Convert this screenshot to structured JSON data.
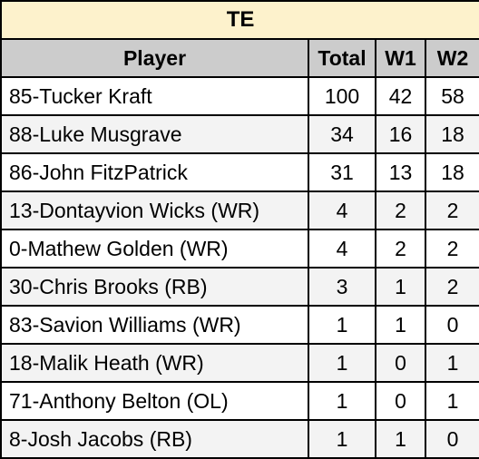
{
  "title": "TE",
  "headers": {
    "player": "Player",
    "total": "Total",
    "w1": "W1",
    "w2": "W2"
  },
  "rows": [
    {
      "player": "85-Tucker Kraft",
      "total": "100",
      "w1": "42",
      "w2": "58"
    },
    {
      "player": "88-Luke Musgrave",
      "total": "34",
      "w1": "16",
      "w2": "18"
    },
    {
      "player": "86-John FitzPatrick",
      "total": "31",
      "w1": "13",
      "w2": "18"
    },
    {
      "player": "13-Dontayvion Wicks (WR)",
      "total": "4",
      "w1": "2",
      "w2": "2"
    },
    {
      "player": "0-Mathew Golden (WR)",
      "total": "4",
      "w1": "2",
      "w2": "2"
    },
    {
      "player": "30-Chris Brooks (RB)",
      "total": "3",
      "w1": "1",
      "w2": "2"
    },
    {
      "player": "83-Savion Williams (WR)",
      "total": "1",
      "w1": "1",
      "w2": "0"
    },
    {
      "player": "18-Malik Heath (WR)",
      "total": "1",
      "w1": "0",
      "w2": "1"
    },
    {
      "player": "71-Anthony Belton (OL)",
      "total": "1",
      "w1": "0",
      "w2": "1"
    },
    {
      "player": "8-Josh Jacobs (RB)",
      "total": "1",
      "w1": "1",
      "w2": "0"
    }
  ]
}
